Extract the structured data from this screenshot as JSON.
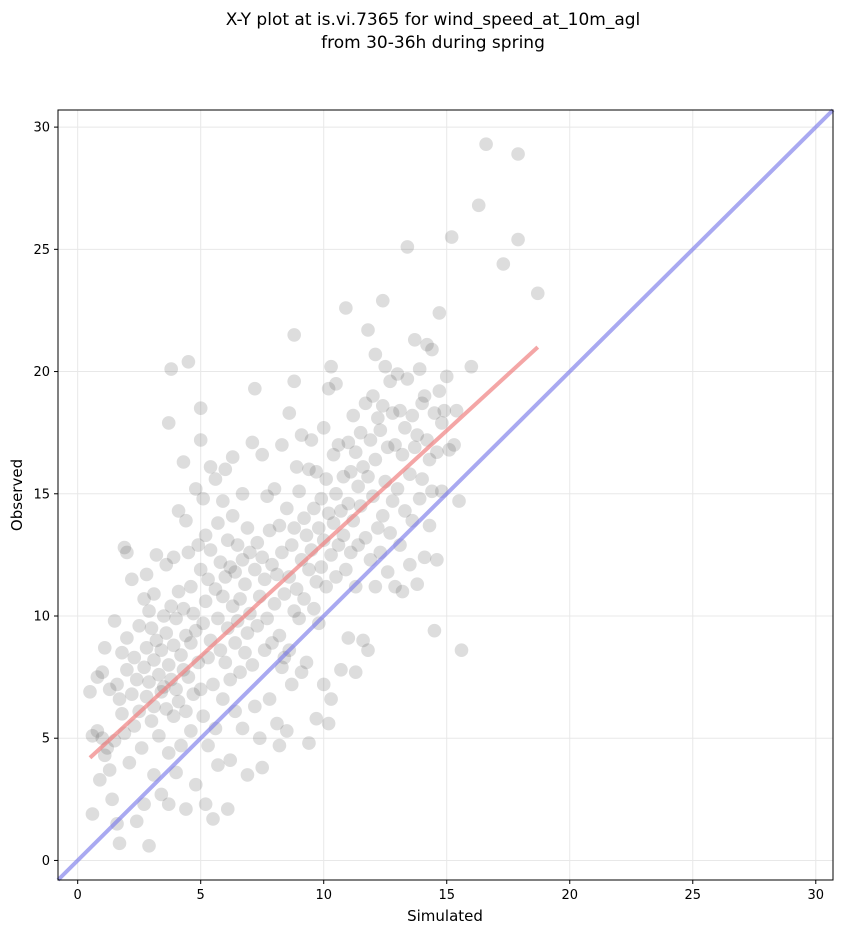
{
  "chart_data": {
    "type": "scatter",
    "title": "X-Y plot at is.vi.7365 for wind_speed_at_10m_agl",
    "subtitle": "from 30-36h during spring",
    "xlabel": "Simulated",
    "ylabel": "Observed",
    "xlim": [
      -0.8,
      30.7
    ],
    "ylim": [
      -0.8,
      30.7
    ],
    "xticks": [
      0,
      5,
      10,
      15,
      20,
      25,
      30
    ],
    "yticks": [
      0,
      5,
      10,
      15,
      20,
      25,
      30
    ],
    "grid": true,
    "legend": "none",
    "colors": {
      "points": "#555555",
      "fit_line": "#f08080",
      "identity_line": "#7b7bea"
    },
    "fit_line": {
      "x": [
        0.5,
        18.7
      ],
      "y": [
        4.2,
        21.0
      ]
    },
    "identity_line": {
      "x": [
        -0.8,
        30.7
      ],
      "y": [
        -0.8,
        30.7
      ]
    },
    "points": [
      [
        0.5,
        6.9
      ],
      [
        0.6,
        5.1
      ],
      [
        0.6,
        1.9
      ],
      [
        0.8,
        7.5
      ],
      [
        0.8,
        5.3
      ],
      [
        0.9,
        3.3
      ],
      [
        1.0,
        7.7
      ],
      [
        1.0,
        5.0
      ],
      [
        1.1,
        8.7
      ],
      [
        1.1,
        4.3
      ],
      [
        1.2,
        4.6
      ],
      [
        1.3,
        7.0
      ],
      [
        1.3,
        3.7
      ],
      [
        1.4,
        2.5
      ],
      [
        1.5,
        9.8
      ],
      [
        1.5,
        4.9
      ],
      [
        1.6,
        7.2
      ],
      [
        1.6,
        1.5
      ],
      [
        1.7,
        6.6
      ],
      [
        1.7,
        0.7
      ],
      [
        1.8,
        8.5
      ],
      [
        1.8,
        6.0
      ],
      [
        1.9,
        12.8
      ],
      [
        1.9,
        5.2
      ],
      [
        2.0,
        12.6
      ],
      [
        2.0,
        9.1
      ],
      [
        2.0,
        7.8
      ],
      [
        2.1,
        4.0
      ],
      [
        2.2,
        11.5
      ],
      [
        2.2,
        6.8
      ],
      [
        2.3,
        8.3
      ],
      [
        2.3,
        5.5
      ],
      [
        2.4,
        7.4
      ],
      [
        2.4,
        1.6
      ],
      [
        2.5,
        9.6
      ],
      [
        2.5,
        6.1
      ],
      [
        2.6,
        4.6
      ],
      [
        2.7,
        10.7
      ],
      [
        2.7,
        7.9
      ],
      [
        2.7,
        2.3
      ],
      [
        2.8,
        11.7
      ],
      [
        2.8,
        8.7
      ],
      [
        2.8,
        6.7
      ],
      [
        2.9,
        10.2
      ],
      [
        2.9,
        7.3
      ],
      [
        2.9,
        0.6
      ],
      [
        3.0,
        9.5
      ],
      [
        3.0,
        5.7
      ],
      [
        3.1,
        10.9
      ],
      [
        3.1,
        8.2
      ],
      [
        3.1,
        6.3
      ],
      [
        3.1,
        3.5
      ],
      [
        3.2,
        12.5
      ],
      [
        3.2,
        9.0
      ],
      [
        3.3,
        7.6
      ],
      [
        3.3,
        5.1
      ],
      [
        3.4,
        8.6
      ],
      [
        3.4,
        6.9
      ],
      [
        3.4,
        2.7
      ],
      [
        3.5,
        10.0
      ],
      [
        3.5,
        7.1
      ],
      [
        3.6,
        12.1
      ],
      [
        3.6,
        9.3
      ],
      [
        3.6,
        6.2
      ],
      [
        3.7,
        17.9
      ],
      [
        3.7,
        8.0
      ],
      [
        3.7,
        4.4
      ],
      [
        3.7,
        2.3
      ],
      [
        3.8,
        20.1
      ],
      [
        3.8,
        10.4
      ],
      [
        3.8,
        7.4
      ],
      [
        3.9,
        12.4
      ],
      [
        3.9,
        8.8
      ],
      [
        3.9,
        5.9
      ],
      [
        4.0,
        9.9
      ],
      [
        4.0,
        7.0
      ],
      [
        4.0,
        3.6
      ],
      [
        4.1,
        14.3
      ],
      [
        4.1,
        11.0
      ],
      [
        4.1,
        6.5
      ],
      [
        4.2,
        8.4
      ],
      [
        4.2,
        4.7
      ],
      [
        4.3,
        16.3
      ],
      [
        4.3,
        10.3
      ],
      [
        4.3,
        7.8
      ],
      [
        4.4,
        13.9
      ],
      [
        4.4,
        9.2
      ],
      [
        4.4,
        6.1
      ],
      [
        4.4,
        2.1
      ],
      [
        4.5,
        20.4
      ],
      [
        4.5,
        12.6
      ],
      [
        4.5,
        7.5
      ],
      [
        4.6,
        11.2
      ],
      [
        4.6,
        8.9
      ],
      [
        4.6,
        5.3
      ],
      [
        4.7,
        10.1
      ],
      [
        4.7,
        6.8
      ],
      [
        4.8,
        15.2
      ],
      [
        4.8,
        9.4
      ],
      [
        4.8,
        3.1
      ],
      [
        4.9,
        12.9
      ],
      [
        4.9,
        8.1
      ],
      [
        5.0,
        18.5
      ],
      [
        5.0,
        17.2
      ],
      [
        5.0,
        11.9
      ],
      [
        5.0,
        7.0
      ],
      [
        5.1,
        14.8
      ],
      [
        5.1,
        9.7
      ],
      [
        5.1,
        5.9
      ],
      [
        5.2,
        13.3
      ],
      [
        5.2,
        10.6
      ],
      [
        5.2,
        2.3
      ],
      [
        5.3,
        11.5
      ],
      [
        5.3,
        8.3
      ],
      [
        5.3,
        4.7
      ],
      [
        5.4,
        16.1
      ],
      [
        5.4,
        12.7
      ],
      [
        5.4,
        9.0
      ],
      [
        5.5,
        7.2
      ],
      [
        5.5,
        1.7
      ],
      [
        5.6,
        15.6
      ],
      [
        5.6,
        11.1
      ],
      [
        5.6,
        5.4
      ],
      [
        5.7,
        13.8
      ],
      [
        5.7,
        9.9
      ],
      [
        5.7,
        3.9
      ],
      [
        5.8,
        12.2
      ],
      [
        5.8,
        8.6
      ],
      [
        5.9,
        14.7
      ],
      [
        5.9,
        10.8
      ],
      [
        5.9,
        6.6
      ],
      [
        6.0,
        16.0
      ],
      [
        6.0,
        11.6
      ],
      [
        6.0,
        8.1
      ],
      [
        6.1,
        13.1
      ],
      [
        6.1,
        9.5
      ],
      [
        6.1,
        2.1
      ],
      [
        6.2,
        12.0
      ],
      [
        6.2,
        7.4
      ],
      [
        6.2,
        4.1
      ],
      [
        6.3,
        16.5
      ],
      [
        6.3,
        14.1
      ],
      [
        6.3,
        10.4
      ],
      [
        6.4,
        11.8
      ],
      [
        6.4,
        8.9
      ],
      [
        6.4,
        6.1
      ],
      [
        6.5,
        12.9
      ],
      [
        6.5,
        9.8
      ],
      [
        6.6,
        10.7
      ],
      [
        6.6,
        7.7
      ],
      [
        6.7,
        15.0
      ],
      [
        6.7,
        12.3
      ],
      [
        6.7,
        5.4
      ],
      [
        6.8,
        11.3
      ],
      [
        6.8,
        8.5
      ],
      [
        6.9,
        13.6
      ],
      [
        6.9,
        9.3
      ],
      [
        6.9,
        3.5
      ],
      [
        7.0,
        12.6
      ],
      [
        7.0,
        10.1
      ],
      [
        7.1,
        17.1
      ],
      [
        7.1,
        8.0
      ],
      [
        7.2,
        19.3
      ],
      [
        7.2,
        11.9
      ],
      [
        7.2,
        6.3
      ],
      [
        7.3,
        13.0
      ],
      [
        7.3,
        9.6
      ],
      [
        7.4,
        10.8
      ],
      [
        7.4,
        5.0
      ],
      [
        7.5,
        16.6
      ],
      [
        7.5,
        12.4
      ],
      [
        7.5,
        3.8
      ],
      [
        7.6,
        11.5
      ],
      [
        7.6,
        8.6
      ],
      [
        7.7,
        14.9
      ],
      [
        7.7,
        9.9
      ],
      [
        7.8,
        13.5
      ],
      [
        7.8,
        6.6
      ],
      [
        7.9,
        12.1
      ],
      [
        7.9,
        8.9
      ],
      [
        8.0,
        15.2
      ],
      [
        8.0,
        10.5
      ],
      [
        8.1,
        11.7
      ],
      [
        8.1,
        5.6
      ],
      [
        8.2,
        13.7
      ],
      [
        8.2,
        9.2
      ],
      [
        8.2,
        4.7
      ],
      [
        8.3,
        17.0
      ],
      [
        8.3,
        12.6
      ],
      [
        8.3,
        7.9
      ],
      [
        8.4,
        10.9
      ],
      [
        8.4,
        8.3
      ],
      [
        8.5,
        14.4
      ],
      [
        8.5,
        5.3
      ],
      [
        8.6,
        18.3
      ],
      [
        8.6,
        11.6
      ],
      [
        8.6,
        8.6
      ],
      [
        8.7,
        12.9
      ],
      [
        8.7,
        7.2
      ],
      [
        8.8,
        21.5
      ],
      [
        8.8,
        19.6
      ],
      [
        8.8,
        13.6
      ],
      [
        8.8,
        10.2
      ],
      [
        8.9,
        16.1
      ],
      [
        8.9,
        11.1
      ],
      [
        9.0,
        15.1
      ],
      [
        9.0,
        9.9
      ],
      [
        9.1,
        17.4
      ],
      [
        9.1,
        12.3
      ],
      [
        9.1,
        7.7
      ],
      [
        9.2,
        14.0
      ],
      [
        9.2,
        10.7
      ],
      [
        9.3,
        13.3
      ],
      [
        9.3,
        8.1
      ],
      [
        9.4,
        16.0
      ],
      [
        9.4,
        11.9
      ],
      [
        9.4,
        4.8
      ],
      [
        9.5,
        17.2
      ],
      [
        9.5,
        12.7
      ],
      [
        9.6,
        14.4
      ],
      [
        9.6,
        10.3
      ],
      [
        9.7,
        15.9
      ],
      [
        9.7,
        11.4
      ],
      [
        9.7,
        5.8
      ],
      [
        9.8,
        13.6
      ],
      [
        9.8,
        9.7
      ],
      [
        9.9,
        14.8
      ],
      [
        9.9,
        12.0
      ],
      [
        10.0,
        17.7
      ],
      [
        10.0,
        13.1
      ],
      [
        10.0,
        7.2
      ],
      [
        10.1,
        15.6
      ],
      [
        10.1,
        11.2
      ],
      [
        10.2,
        19.3
      ],
      [
        10.2,
        14.2
      ],
      [
        10.2,
        5.6
      ],
      [
        10.3,
        20.2
      ],
      [
        10.3,
        12.5
      ],
      [
        10.3,
        6.6
      ],
      [
        10.4,
        16.6
      ],
      [
        10.4,
        13.8
      ],
      [
        10.5,
        19.5
      ],
      [
        10.5,
        15.0
      ],
      [
        10.5,
        11.6
      ],
      [
        10.6,
        17.0
      ],
      [
        10.6,
        12.9
      ],
      [
        10.7,
        14.3
      ],
      [
        10.7,
        7.8
      ],
      [
        10.8,
        15.7
      ],
      [
        10.8,
        13.3
      ],
      [
        10.9,
        22.6
      ],
      [
        10.9,
        11.9
      ],
      [
        11.0,
        17.1
      ],
      [
        11.0,
        14.6
      ],
      [
        11.0,
        9.1
      ],
      [
        11.1,
        15.9
      ],
      [
        11.1,
        12.6
      ],
      [
        11.2,
        18.2
      ],
      [
        11.2,
        13.9
      ],
      [
        11.3,
        16.7
      ],
      [
        11.3,
        11.2
      ],
      [
        11.3,
        7.7
      ],
      [
        11.4,
        15.3
      ],
      [
        11.4,
        12.9
      ],
      [
        11.5,
        17.5
      ],
      [
        11.5,
        14.5
      ],
      [
        11.6,
        16.1
      ],
      [
        11.6,
        9.0
      ],
      [
        11.7,
        18.7
      ],
      [
        11.7,
        13.2
      ],
      [
        11.8,
        21.7
      ],
      [
        11.8,
        15.7
      ],
      [
        11.8,
        8.6
      ],
      [
        11.9,
        17.2
      ],
      [
        11.9,
        12.3
      ],
      [
        12.0,
        19.0
      ],
      [
        12.0,
        14.9
      ],
      [
        12.1,
        20.7
      ],
      [
        12.1,
        16.4
      ],
      [
        12.1,
        11.2
      ],
      [
        12.2,
        18.1
      ],
      [
        12.2,
        13.6
      ],
      [
        12.3,
        17.6
      ],
      [
        12.3,
        12.6
      ],
      [
        12.4,
        22.9
      ],
      [
        12.4,
        18.6
      ],
      [
        12.4,
        14.1
      ],
      [
        12.5,
        20.2
      ],
      [
        12.5,
        15.5
      ],
      [
        12.6,
        16.9
      ],
      [
        12.6,
        11.8
      ],
      [
        12.7,
        19.6
      ],
      [
        12.7,
        13.4
      ],
      [
        12.8,
        18.3
      ],
      [
        12.8,
        14.7
      ],
      [
        12.9,
        17.0
      ],
      [
        12.9,
        11.2
      ],
      [
        13.0,
        19.9
      ],
      [
        13.0,
        15.2
      ],
      [
        13.1,
        18.4
      ],
      [
        13.1,
        12.9
      ],
      [
        13.2,
        16.6
      ],
      [
        13.2,
        11.0
      ],
      [
        13.3,
        17.7
      ],
      [
        13.3,
        14.3
      ],
      [
        13.4,
        25.1
      ],
      [
        13.4,
        19.7
      ],
      [
        13.5,
        15.8
      ],
      [
        13.5,
        12.1
      ],
      [
        13.6,
        18.2
      ],
      [
        13.6,
        13.9
      ],
      [
        13.7,
        21.3
      ],
      [
        13.7,
        16.9
      ],
      [
        13.8,
        17.4
      ],
      [
        13.8,
        11.3
      ],
      [
        13.9,
        20.1
      ],
      [
        13.9,
        14.8
      ],
      [
        14.0,
        18.7
      ],
      [
        14.0,
        15.6
      ],
      [
        14.1,
        19.0
      ],
      [
        14.1,
        12.4
      ],
      [
        14.2,
        21.1
      ],
      [
        14.2,
        17.2
      ],
      [
        14.3,
        16.4
      ],
      [
        14.3,
        13.7
      ],
      [
        14.4,
        20.9
      ],
      [
        14.4,
        15.1
      ],
      [
        14.5,
        9.4
      ],
      [
        14.5,
        18.3
      ],
      [
        14.6,
        12.3
      ],
      [
        14.6,
        16.7
      ],
      [
        14.7,
        22.4
      ],
      [
        14.7,
        19.2
      ],
      [
        14.8,
        17.9
      ],
      [
        14.8,
        15.1
      ],
      [
        14.9,
        18.4
      ],
      [
        15.0,
        19.8
      ],
      [
        15.1,
        16.8
      ],
      [
        15.2,
        25.5
      ],
      [
        15.3,
        17.0
      ],
      [
        15.4,
        18.4
      ],
      [
        15.5,
        14.7
      ],
      [
        15.6,
        8.6
      ],
      [
        16.0,
        20.2
      ],
      [
        16.3,
        26.8
      ],
      [
        16.6,
        29.3
      ],
      [
        17.3,
        24.4
      ],
      [
        17.9,
        28.9
      ],
      [
        17.9,
        25.4
      ],
      [
        18.7,
        23.2
      ]
    ]
  }
}
